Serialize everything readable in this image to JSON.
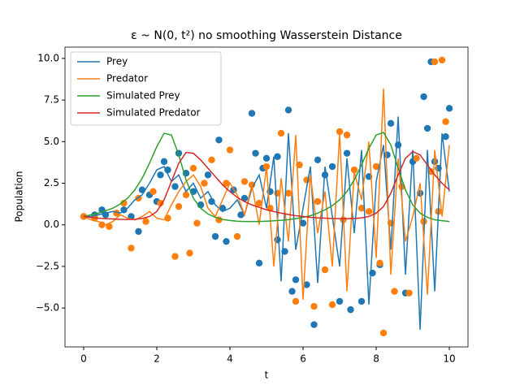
{
  "chart_data": {
    "type": "line",
    "title": "ε ~ N(0, t²) no smoothing Wasserstein Distance",
    "xlabel": "t",
    "ylabel": "Population",
    "xlim": [
      -0.51,
      10.51
    ],
    "ylim": [
      -7.34,
      10.68
    ],
    "xticks": [
      0,
      2,
      4,
      6,
      8,
      10
    ],
    "yticks": [
      {
        "value": -5,
        "label": "−5.0"
      },
      {
        "value": -2.5,
        "label": "−2.5"
      },
      {
        "value": 0,
        "label": "0.0"
      },
      {
        "value": 2.5,
        "label": "2.5"
      },
      {
        "value": 5,
        "label": "5.0"
      },
      {
        "value": 7.5,
        "label": "7.5"
      },
      {
        "value": 10,
        "label": "10.0"
      }
    ],
    "legend": "upper left",
    "x": [
      0,
      0.2,
      0.4,
      0.6,
      0.8,
      1,
      1.2,
      1.4,
      1.6,
      1.8,
      2,
      2.2,
      2.4,
      2.6,
      2.8,
      3,
      3.2,
      3.4,
      3.6,
      3.8,
      4,
      4.2,
      4.4,
      4.6,
      4.8,
      5,
      5.2,
      5.4,
      5.6,
      5.8,
      6,
      6.2,
      6.4,
      6.6,
      6.8,
      7,
      7.2,
      7.4,
      7.6,
      7.8,
      8,
      8.2,
      8.4,
      8.6,
      8.8,
      9,
      9.2,
      9.4,
      9.6,
      9.8,
      10
    ],
    "series": [
      {
        "name": "Prey",
        "color": "#1f77b4",
        "values": [
          0.5,
          0.5,
          0.6,
          0.7,
          0.8,
          0.7,
          1.0,
          1.5,
          1.8,
          2.5,
          3.3,
          3.5,
          2.6,
          3.0,
          2.0,
          2.5,
          1.6,
          2.0,
          1.2,
          0.8,
          1.0,
          1.5,
          0.6,
          2.2,
          3.0,
          1.0,
          4.1,
          -3.4,
          5.5,
          -1.5,
          1.0,
          3.5,
          -3.5,
          3.5,
          0.5,
          -2.5,
          4.0,
          -0.5,
          4.5,
          -4.8,
          2.6,
          4.8,
          -1.5,
          6.5,
          -3.0,
          4.5,
          -6.3,
          4.5,
          -4.0,
          5.5,
          2.0
        ]
      },
      {
        "name": "Predator",
        "color": "#ff7f0e",
        "values": [
          0.5,
          0.3,
          0.2,
          0.0,
          0.2,
          0.6,
          0.4,
          0.3,
          0.5,
          0.8,
          0.4,
          0.3,
          1.2,
          2.0,
          2.6,
          3.0,
          2.3,
          1.0,
          0.5,
          1.5,
          2.5,
          1.8,
          0.6,
          2.4,
          0.0,
          3.5,
          -2.5,
          2.8,
          -1.0,
          5.4,
          -4.5,
          3.0,
          -0.5,
          2.0,
          -2.5,
          5.5,
          -4.0,
          3.2,
          1.5,
          5.0,
          -2.0,
          8.2,
          -3.0,
          4.0,
          -1.0,
          0.5,
          2.5,
          -4.2,
          4.5,
          0.5,
          4.8
        ]
      },
      {
        "name": "Simulated Prey",
        "color": "#2ca02c",
        "values": [
          0.5,
          0.6,
          0.7,
          0.85,
          1.0,
          1.25,
          1.6,
          2.1,
          2.8,
          3.7,
          4.7,
          5.5,
          5.4,
          4.2,
          2.7,
          1.6,
          1.0,
          0.65,
          0.45,
          0.32,
          0.26,
          0.22,
          0.2,
          0.2,
          0.2,
          0.22,
          0.24,
          0.27,
          0.31,
          0.37,
          0.45,
          0.55,
          0.7,
          0.9,
          1.15,
          1.5,
          2.0,
          2.7,
          3.6,
          4.6,
          5.4,
          5.55,
          4.8,
          3.4,
          2.1,
          1.2,
          0.7,
          0.45,
          0.3,
          0.25,
          0.2
        ]
      },
      {
        "name": "Simulated Predator",
        "color": "#d62728",
        "values": [
          0.5,
          0.45,
          0.4,
          0.37,
          0.35,
          0.33,
          0.32,
          0.33,
          0.38,
          0.5,
          0.8,
          1.5,
          2.6,
          3.7,
          4.35,
          4.3,
          3.9,
          3.4,
          2.9,
          2.4,
          2.0,
          1.65,
          1.4,
          1.2,
          1.05,
          0.9,
          0.8,
          0.7,
          0.62,
          0.55,
          0.5,
          0.45,
          0.42,
          0.4,
          0.38,
          0.37,
          0.37,
          0.38,
          0.42,
          0.5,
          0.7,
          1.1,
          1.9,
          3.0,
          4.0,
          4.4,
          4.2,
          3.6,
          3.0,
          2.5,
          2.1
        ]
      }
    ],
    "scatter_series": [
      {
        "color": "#1f77b4",
        "x": [
          0,
          0.3,
          0.5,
          0.6,
          0.9,
          1.1,
          1.3,
          1.5,
          1.6,
          1.8,
          2.0,
          2.1,
          2.2,
          2.3,
          2.5,
          2.6,
          2.8,
          3.0,
          3.2,
          3.4,
          3.5,
          3.6,
          3.7,
          3.8,
          3.9,
          4.1,
          4.3,
          4.4,
          4.6,
          4.7,
          4.8,
          4.9,
          5.0,
          5.1,
          5.3,
          5.3,
          5.5,
          5.6,
          5.7,
          5.8,
          6.0,
          6.1,
          6.3,
          6.4,
          6.6,
          6.8,
          7.0,
          7.2,
          7.3,
          7.6,
          7.8,
          7.9,
          8.1,
          8.3,
          8.4,
          8.6,
          8.8,
          9.0,
          9.2,
          9.3,
          9.4,
          9.5,
          9.6,
          9.7,
          9.9,
          10.0
        ],
        "values": [
          0.5,
          0.6,
          0.9,
          0.6,
          0.7,
          0.9,
          0.5,
          -0.4,
          2.1,
          1.8,
          1.4,
          3.0,
          3.8,
          3.3,
          2.3,
          4.3,
          3.1,
          2.0,
          1.2,
          3.0,
          1.4,
          -0.7,
          5.1,
          1.0,
          -1.0,
          2.1,
          0.6,
          1.6,
          6.7,
          4.3,
          -2.3,
          3.4,
          4.0,
          2.0,
          4.1,
          -0.9,
          -1.6,
          6.9,
          -4.0,
          -3.3,
          0.1,
          -3.6,
          -6.0,
          3.9,
          3.0,
          3.5,
          -4.6,
          4.3,
          -5.1,
          -4.6,
          2.9,
          -2.9,
          -2.4,
          4.2,
          6.1,
          4.8,
          -4.1,
          3.8,
          1.9,
          7.7,
          5.8,
          9.8,
          3.8,
          3.4,
          5.3,
          7.0
        ]
      },
      {
        "color": "#ff7f0e",
        "x": [
          0,
          0.3,
          0.5,
          0.7,
          0.9,
          1.1,
          1.3,
          1.5,
          1.7,
          1.9,
          2.1,
          2.3,
          2.5,
          2.6,
          2.8,
          2.9,
          3.0,
          3.1,
          3.3,
          3.5,
          3.7,
          3.9,
          4.0,
          4.2,
          4.4,
          4.6,
          4.8,
          5.0,
          5.1,
          5.3,
          5.4,
          5.6,
          5.8,
          5.9,
          6.1,
          6.3,
          6.4,
          6.6,
          6.8,
          7.0,
          7.1,
          7.2,
          7.4,
          7.6,
          7.8,
          8.0,
          8.1,
          8.2,
          8.4,
          8.5,
          8.7,
          8.9,
          9.1,
          9.3,
          9.5,
          9.6,
          9.7,
          9.8,
          9.9
        ],
        "values": [
          0.5,
          0.4,
          0.0,
          -0.1,
          0.7,
          1.3,
          -1.4,
          1.6,
          0.2,
          2.0,
          1.3,
          0.4,
          -1.9,
          1.1,
          1.8,
          -1.7,
          3.4,
          0.1,
          2.5,
          3.9,
          0.3,
          2.5,
          4.5,
          -0.7,
          2.6,
          2.4,
          1.3,
          3.5,
          1.0,
          1.9,
          5.5,
          1.9,
          -4.6,
          3.6,
          2.7,
          -4.9,
          1.4,
          -2.7,
          -4.8,
          5.6,
          0.3,
          5.4,
          3.3,
          1.0,
          0.8,
          3.5,
          -2.3,
          -6.5,
          0.1,
          -4.0,
          2.3,
          -4.1,
          4.0,
          0.2,
          3.2,
          9.8,
          0.8,
          9.9,
          6.2
        ]
      }
    ]
  }
}
